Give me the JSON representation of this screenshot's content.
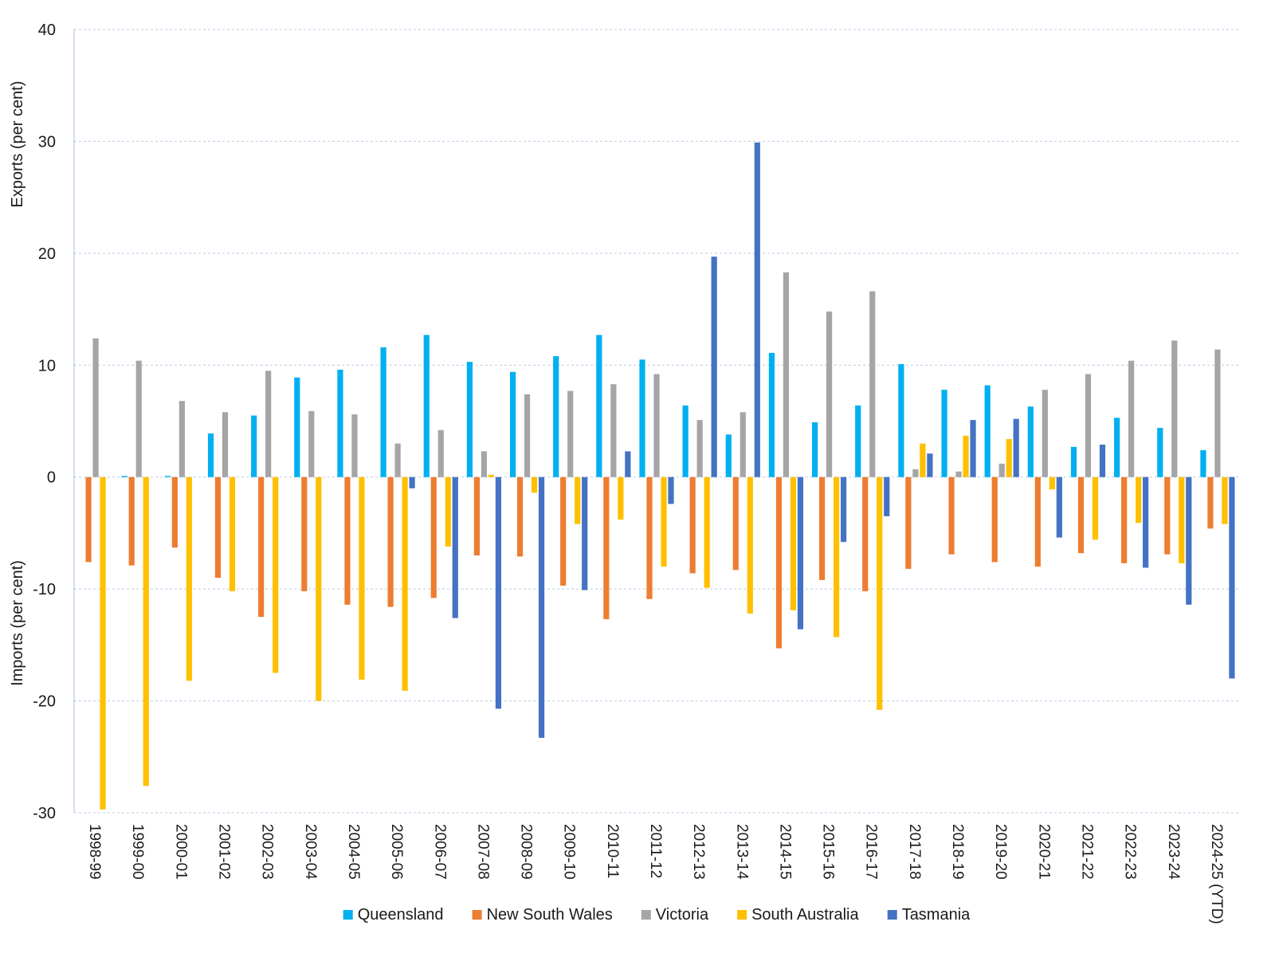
{
  "chart_data": {
    "type": "bar",
    "title": "",
    "ylabel_top": "Exports (per cent)",
    "ylabel_bottom": "Imports (per cent)",
    "ylim": [
      -30,
      40
    ],
    "yticks": [
      -30,
      -20,
      -10,
      0,
      10,
      20,
      30,
      40
    ],
    "grid": true,
    "legend_position": "bottom",
    "categories": [
      "1998-99",
      "1999-00",
      "2000-01",
      "2001-02",
      "2002-03",
      "2003-04",
      "2004-05",
      "2005-06",
      "2006-07",
      "2007-08",
      "2008-09",
      "2009-10",
      "2010-11",
      "2011-12",
      "2012-13",
      "2013-14",
      "2014-15",
      "2015-16",
      "2016-17",
      "2017-18",
      "2018-19",
      "2019-20",
      "2020-21",
      "2021-22",
      "2022-23",
      "2023-24",
      "2024-25 (YTD)"
    ],
    "series": [
      {
        "name": "Queensland",
        "color": "#00b0f0",
        "values": [
          0,
          0.1,
          0.1,
          3.9,
          5.5,
          8.9,
          9.6,
          11.6,
          12.7,
          10.3,
          9.4,
          10.8,
          12.7,
          10.5,
          6.4,
          3.8,
          11.1,
          4.9,
          6.4,
          10.1,
          7.8,
          8.2,
          6.3,
          2.7,
          5.3,
          4.4,
          2.4
        ]
      },
      {
        "name": "New South Wales",
        "color": "#ed7d31",
        "values": [
          -7.6,
          -7.9,
          -6.3,
          -9.0,
          -12.5,
          -10.2,
          -11.4,
          -11.6,
          -10.8,
          -7.0,
          -7.1,
          -9.7,
          -12.7,
          -10.9,
          -8.6,
          -8.3,
          -15.3,
          -9.2,
          -10.2,
          -8.2,
          -6.9,
          -7.6,
          -8.0,
          -6.8,
          -7.7,
          -6.9,
          -4.6
        ]
      },
      {
        "name": "Victoria",
        "color": "#a5a5a5",
        "values": [
          12.4,
          10.4,
          6.8,
          5.8,
          9.5,
          5.9,
          5.6,
          3.0,
          4.2,
          2.3,
          7.4,
          7.7,
          8.3,
          9.2,
          5.1,
          5.8,
          18.3,
          14.8,
          16.6,
          0.7,
          0.5,
          1.2,
          7.8,
          9.2,
          10.4,
          12.2,
          11.4
        ]
      },
      {
        "name": "South Australia",
        "color": "#ffc000",
        "values": [
          -29.7,
          -27.6,
          -18.2,
          -10.2,
          -17.5,
          -20.0,
          -18.1,
          -19.1,
          -6.2,
          0.2,
          -1.4,
          -4.2,
          -3.8,
          -8.0,
          -9.9,
          -12.2,
          -11.9,
          -14.3,
          -20.8,
          3.0,
          3.7,
          3.4,
          -1.1,
          -5.6,
          -4.1,
          -7.7,
          -4.2
        ]
      },
      {
        "name": "Tasmania",
        "color": "#4472c4",
        "values": [
          0,
          0,
          0,
          0,
          0,
          0,
          0,
          -1.0,
          -12.6,
          -20.7,
          -23.3,
          -10.1,
          2.3,
          -2.4,
          19.7,
          29.9,
          -13.6,
          -5.8,
          -3.5,
          2.1,
          5.1,
          5.2,
          -5.4,
          2.9,
          -8.1,
          -11.4,
          -18.0
        ]
      }
    ]
  }
}
